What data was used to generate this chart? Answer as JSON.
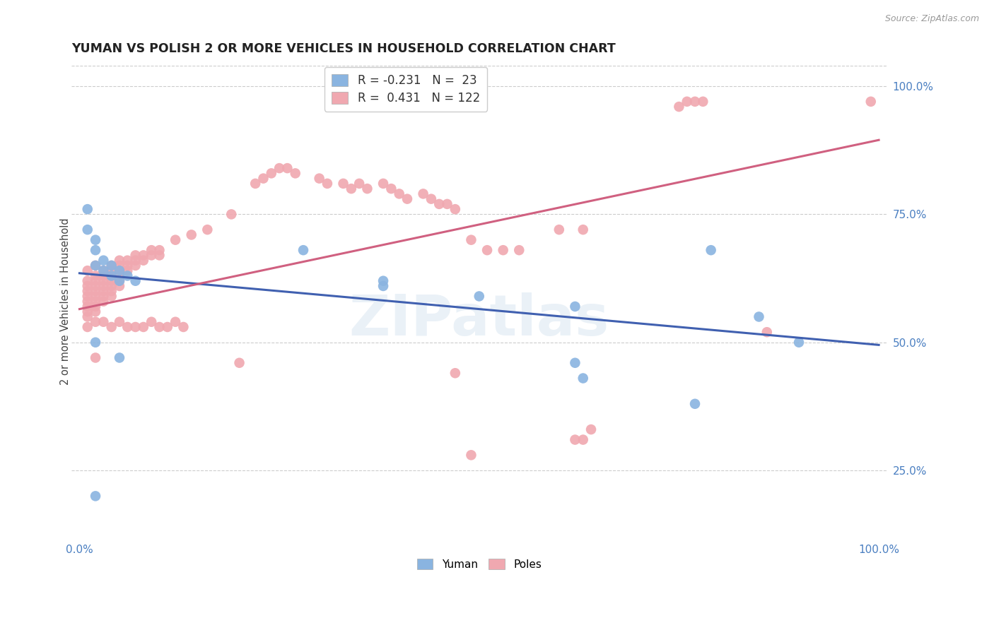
{
  "title": "YUMAN VS POLISH 2 OR MORE VEHICLES IN HOUSEHOLD CORRELATION CHART",
  "source": "Source: ZipAtlas.com",
  "ylabel": "2 or more Vehicles in Household",
  "ylabel_right_ticks": [
    "25.0%",
    "50.0%",
    "75.0%",
    "100.0%"
  ],
  "ylabel_right_vals": [
    0.25,
    0.5,
    0.75,
    1.0
  ],
  "watermark": "ZIPatlas",
  "legend_blue_r": "-0.231",
  "legend_blue_n": "23",
  "legend_pink_r": "0.431",
  "legend_pink_n": "122",
  "blue_color": "#8ab4e0",
  "pink_color": "#f0a8b0",
  "blue_line_color": "#4060b0",
  "pink_line_color": "#d06080",
  "blue_scatter": [
    [
      0.01,
      0.76
    ],
    [
      0.01,
      0.72
    ],
    [
      0.02,
      0.7
    ],
    [
      0.02,
      0.68
    ],
    [
      0.02,
      0.65
    ],
    [
      0.03,
      0.66
    ],
    [
      0.03,
      0.64
    ],
    [
      0.04,
      0.65
    ],
    [
      0.04,
      0.63
    ],
    [
      0.05,
      0.64
    ],
    [
      0.05,
      0.62
    ],
    [
      0.06,
      0.63
    ],
    [
      0.07,
      0.62
    ],
    [
      0.28,
      0.68
    ],
    [
      0.38,
      0.62
    ],
    [
      0.38,
      0.61
    ],
    [
      0.5,
      0.59
    ],
    [
      0.62,
      0.57
    ],
    [
      0.79,
      0.68
    ],
    [
      0.85,
      0.55
    ],
    [
      0.02,
      0.5
    ],
    [
      0.05,
      0.47
    ],
    [
      0.62,
      0.46
    ],
    [
      0.63,
      0.43
    ],
    [
      0.77,
      0.38
    ],
    [
      0.9,
      0.5
    ],
    [
      0.02,
      0.2
    ]
  ],
  "pink_scatter": [
    [
      0.01,
      0.64
    ],
    [
      0.01,
      0.62
    ],
    [
      0.01,
      0.61
    ],
    [
      0.01,
      0.6
    ],
    [
      0.01,
      0.59
    ],
    [
      0.01,
      0.58
    ],
    [
      0.01,
      0.57
    ],
    [
      0.01,
      0.56
    ],
    [
      0.01,
      0.55
    ],
    [
      0.02,
      0.65
    ],
    [
      0.02,
      0.63
    ],
    [
      0.02,
      0.62
    ],
    [
      0.02,
      0.61
    ],
    [
      0.02,
      0.6
    ],
    [
      0.02,
      0.59
    ],
    [
      0.02,
      0.58
    ],
    [
      0.02,
      0.57
    ],
    [
      0.02,
      0.56
    ],
    [
      0.03,
      0.64
    ],
    [
      0.03,
      0.63
    ],
    [
      0.03,
      0.62
    ],
    [
      0.03,
      0.61
    ],
    [
      0.03,
      0.6
    ],
    [
      0.03,
      0.59
    ],
    [
      0.03,
      0.58
    ],
    [
      0.04,
      0.65
    ],
    [
      0.04,
      0.64
    ],
    [
      0.04,
      0.63
    ],
    [
      0.04,
      0.62
    ],
    [
      0.04,
      0.61
    ],
    [
      0.04,
      0.6
    ],
    [
      0.04,
      0.59
    ],
    [
      0.05,
      0.66
    ],
    [
      0.05,
      0.65
    ],
    [
      0.05,
      0.64
    ],
    [
      0.05,
      0.63
    ],
    [
      0.05,
      0.62
    ],
    [
      0.05,
      0.61
    ],
    [
      0.06,
      0.66
    ],
    [
      0.06,
      0.65
    ],
    [
      0.06,
      0.64
    ],
    [
      0.07,
      0.67
    ],
    [
      0.07,
      0.66
    ],
    [
      0.07,
      0.65
    ],
    [
      0.08,
      0.67
    ],
    [
      0.08,
      0.66
    ],
    [
      0.09,
      0.68
    ],
    [
      0.09,
      0.67
    ],
    [
      0.1,
      0.68
    ],
    [
      0.1,
      0.67
    ],
    [
      0.12,
      0.7
    ],
    [
      0.14,
      0.71
    ],
    [
      0.16,
      0.72
    ],
    [
      0.19,
      0.75
    ],
    [
      0.22,
      0.81
    ],
    [
      0.23,
      0.82
    ],
    [
      0.24,
      0.83
    ],
    [
      0.25,
      0.84
    ],
    [
      0.26,
      0.84
    ],
    [
      0.27,
      0.83
    ],
    [
      0.3,
      0.82
    ],
    [
      0.31,
      0.81
    ],
    [
      0.33,
      0.81
    ],
    [
      0.34,
      0.8
    ],
    [
      0.35,
      0.81
    ],
    [
      0.36,
      0.8
    ],
    [
      0.38,
      0.81
    ],
    [
      0.39,
      0.8
    ],
    [
      0.4,
      0.79
    ],
    [
      0.41,
      0.78
    ],
    [
      0.43,
      0.79
    ],
    [
      0.44,
      0.78
    ],
    [
      0.45,
      0.77
    ],
    [
      0.46,
      0.77
    ],
    [
      0.47,
      0.76
    ],
    [
      0.49,
      0.7
    ],
    [
      0.51,
      0.68
    ],
    [
      0.53,
      0.68
    ],
    [
      0.55,
      0.68
    ],
    [
      0.6,
      0.72
    ],
    [
      0.63,
      0.72
    ],
    [
      0.75,
      0.96
    ],
    [
      0.76,
      0.97
    ],
    [
      0.77,
      0.97
    ],
    [
      0.78,
      0.97
    ],
    [
      0.99,
      0.97
    ],
    [
      0.01,
      0.53
    ],
    [
      0.02,
      0.54
    ],
    [
      0.03,
      0.54
    ],
    [
      0.04,
      0.53
    ],
    [
      0.05,
      0.54
    ],
    [
      0.06,
      0.53
    ],
    [
      0.07,
      0.53
    ],
    [
      0.08,
      0.53
    ],
    [
      0.09,
      0.54
    ],
    [
      0.1,
      0.53
    ],
    [
      0.11,
      0.53
    ],
    [
      0.12,
      0.54
    ],
    [
      0.13,
      0.53
    ],
    [
      0.02,
      0.47
    ],
    [
      0.2,
      0.46
    ],
    [
      0.47,
      0.44
    ],
    [
      0.49,
      0.28
    ],
    [
      0.62,
      0.31
    ],
    [
      0.63,
      0.31
    ],
    [
      0.64,
      0.33
    ],
    [
      0.86,
      0.52
    ]
  ],
  "blue_line": [
    [
      0.0,
      0.635
    ],
    [
      1.0,
      0.495
    ]
  ],
  "pink_line": [
    [
      0.0,
      0.565
    ],
    [
      1.0,
      0.895
    ]
  ],
  "xlim": [
    -0.01,
    1.01
  ],
  "ylim": [
    0.12,
    1.04
  ],
  "figsize": [
    14.06,
    8.92
  ],
  "dpi": 100
}
